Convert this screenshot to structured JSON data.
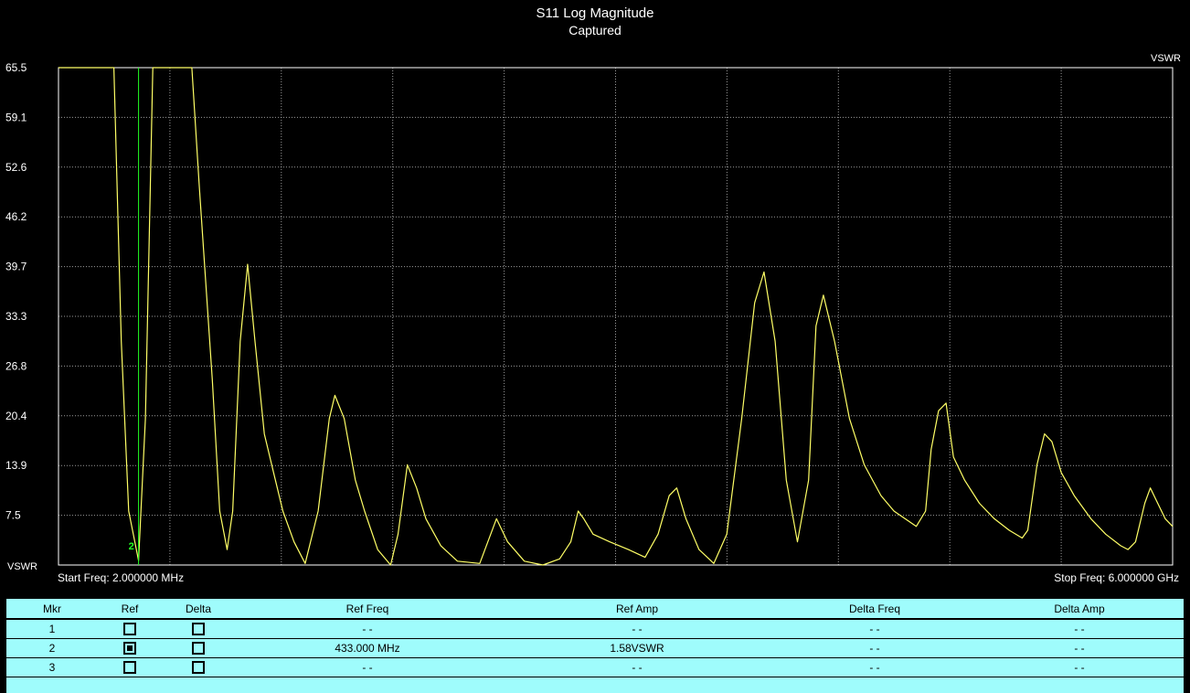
{
  "colors": {
    "background": "#000000",
    "trace": "#ffff66",
    "marker": "#22ff22",
    "grid": "#9a9a9a",
    "panel": "#9ffcfc"
  },
  "chart_data": {
    "type": "line",
    "title": "S11 Log Magnitude",
    "subtitle": "Captured",
    "ylabel_left": "VSWR",
    "ylabel_right": "VSWR",
    "yticks": [
      "65.5",
      "59.1",
      "52.6",
      "46.2",
      "39.7",
      "33.3",
      "26.8",
      "20.4",
      "13.9",
      "7.5"
    ],
    "ylim": [
      1.0,
      65.5
    ],
    "xlim": [
      2,
      6000
    ],
    "x_unit": "MHz",
    "start_freq_label": "Start Freq: 2.000000 MHz",
    "stop_freq_label": "Stop Freq: 6.000000 GHz",
    "grid": true,
    "series": [
      {
        "color": "#ffff66",
        "points": [
          [
            2,
            65.5
          ],
          [
            300,
            65.5
          ],
          [
            340,
            30
          ],
          [
            380,
            8
          ],
          [
            433,
            1.58
          ],
          [
            470,
            20
          ],
          [
            510,
            65.5
          ],
          [
            720,
            65.5
          ],
          [
            760,
            50
          ],
          [
            830,
            25
          ],
          [
            870,
            8
          ],
          [
            910,
            3
          ],
          [
            940,
            8
          ],
          [
            980,
            30
          ],
          [
            1020,
            40
          ],
          [
            1060,
            30
          ],
          [
            1110,
            18
          ],
          [
            1160,
            13
          ],
          [
            1210,
            8
          ],
          [
            1270,
            4
          ],
          [
            1330,
            1.2
          ],
          [
            1400,
            8
          ],
          [
            1460,
            20
          ],
          [
            1490,
            23
          ],
          [
            1540,
            20
          ],
          [
            1600,
            12
          ],
          [
            1650,
            8
          ],
          [
            1720,
            3
          ],
          [
            1790,
            1.0
          ],
          [
            1830,
            5
          ],
          [
            1880,
            14
          ],
          [
            1930,
            11
          ],
          [
            1980,
            7
          ],
          [
            2060,
            3.5
          ],
          [
            2150,
            1.5
          ],
          [
            2270,
            1.2
          ],
          [
            2360,
            7
          ],
          [
            2420,
            4
          ],
          [
            2510,
            1.5
          ],
          [
            2610,
            1.0
          ],
          [
            2700,
            1.8
          ],
          [
            2760,
            4
          ],
          [
            2800,
            8
          ],
          [
            2830,
            7
          ],
          [
            2880,
            5
          ],
          [
            2970,
            4
          ],
          [
            3070,
            3
          ],
          [
            3160,
            2
          ],
          [
            3230,
            5
          ],
          [
            3290,
            10
          ],
          [
            3330,
            11
          ],
          [
            3380,
            7
          ],
          [
            3450,
            3
          ],
          [
            3530,
            1.2
          ],
          [
            3600,
            5
          ],
          [
            3680,
            20
          ],
          [
            3750,
            35
          ],
          [
            3800,
            39
          ],
          [
            3860,
            30
          ],
          [
            3920,
            12
          ],
          [
            3980,
            4
          ],
          [
            4040,
            12
          ],
          [
            4080,
            32
          ],
          [
            4120,
            36
          ],
          [
            4180,
            30
          ],
          [
            4260,
            20
          ],
          [
            4340,
            14
          ],
          [
            4430,
            10
          ],
          [
            4500,
            8
          ],
          [
            4560,
            7
          ],
          [
            4620,
            6
          ],
          [
            4670,
            8
          ],
          [
            4700,
            16
          ],
          [
            4740,
            21
          ],
          [
            4780,
            22
          ],
          [
            4820,
            15
          ],
          [
            4880,
            12
          ],
          [
            4960,
            9
          ],
          [
            5040,
            7
          ],
          [
            5120,
            5.5
          ],
          [
            5190,
            4.5
          ],
          [
            5220,
            5.5
          ],
          [
            5270,
            14
          ],
          [
            5310,
            18
          ],
          [
            5350,
            17
          ],
          [
            5400,
            13
          ],
          [
            5470,
            10
          ],
          [
            5560,
            7
          ],
          [
            5640,
            5
          ],
          [
            5720,
            3.5
          ],
          [
            5760,
            3
          ],
          [
            5800,
            4
          ],
          [
            5850,
            9
          ],
          [
            5880,
            11
          ],
          [
            5920,
            9
          ],
          [
            5960,
            7
          ],
          [
            6000,
            6
          ]
        ]
      }
    ],
    "markers": [
      {
        "label": "2",
        "x": 433,
        "y": 1.58
      }
    ]
  },
  "marker_table": {
    "headers": [
      "Mkr",
      "Ref",
      "Delta",
      "Ref Freq",
      "Ref Amp",
      "Delta Freq",
      "Delta Amp"
    ],
    "rows": [
      {
        "mkr": "1",
        "ref": false,
        "delta": false,
        "ref_freq": "- -",
        "ref_amp": "- -",
        "delta_freq": "- -",
        "delta_amp": "- -"
      },
      {
        "mkr": "2",
        "ref": true,
        "delta": false,
        "ref_freq": "433.000 MHz",
        "ref_amp": "1.58VSWR",
        "delta_freq": "- -",
        "delta_amp": "- -"
      },
      {
        "mkr": "3",
        "ref": false,
        "delta": false,
        "ref_freq": "- -",
        "ref_amp": "- -",
        "delta_freq": "- -",
        "delta_amp": "- -"
      }
    ]
  }
}
